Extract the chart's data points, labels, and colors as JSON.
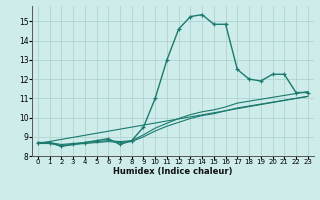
{
  "xlabel": "Humidex (Indice chaleur)",
  "xlim": [
    -0.5,
    23.5
  ],
  "ylim": [
    8.0,
    15.8
  ],
  "yticks": [
    8,
    9,
    10,
    11,
    12,
    13,
    14,
    15
  ],
  "xticks": [
    0,
    1,
    2,
    3,
    4,
    5,
    6,
    7,
    8,
    9,
    10,
    11,
    12,
    13,
    14,
    15,
    16,
    17,
    18,
    19,
    20,
    21,
    22,
    23
  ],
  "bg_color": "#ceecea",
  "grid_color": "#aed4d0",
  "line_color": "#1a7a6e",
  "series_main": {
    "x": [
      0,
      1,
      2,
      3,
      4,
      5,
      6,
      7,
      8,
      9,
      10,
      11,
      12,
      13,
      14,
      15,
      16,
      17,
      18,
      19,
      20,
      21,
      22,
      23
    ],
    "y": [
      8.7,
      8.7,
      8.5,
      8.6,
      8.7,
      8.8,
      8.9,
      8.6,
      8.8,
      9.5,
      11.0,
      13.0,
      14.6,
      15.25,
      15.35,
      14.85,
      14.85,
      12.5,
      12.0,
      11.9,
      12.25,
      12.25,
      11.3,
      11.3
    ]
  },
  "series_trend1": {
    "x": [
      0,
      1,
      2,
      3,
      4,
      5,
      6,
      7,
      8,
      9,
      10,
      11,
      12,
      13,
      14,
      15,
      16,
      17,
      18,
      19,
      20,
      21,
      22,
      23
    ],
    "y": [
      8.65,
      8.65,
      8.55,
      8.6,
      8.65,
      8.7,
      8.75,
      8.7,
      8.75,
      9.0,
      9.3,
      9.55,
      9.75,
      9.95,
      10.1,
      10.2,
      10.35,
      10.5,
      10.6,
      10.7,
      10.8,
      10.9,
      11.0,
      11.1
    ]
  },
  "series_trend2": {
    "x": [
      0,
      1,
      2,
      3,
      4,
      5,
      6,
      7,
      8,
      9,
      10,
      11,
      12,
      13,
      14,
      15,
      16,
      17,
      18,
      19,
      20,
      21,
      22,
      23
    ],
    "y": [
      8.7,
      8.7,
      8.6,
      8.65,
      8.7,
      8.75,
      8.8,
      8.75,
      8.8,
      9.1,
      9.45,
      9.7,
      9.95,
      10.15,
      10.3,
      10.4,
      10.55,
      10.75,
      10.85,
      10.95,
      11.05,
      11.15,
      11.25,
      11.35
    ]
  },
  "series_linear": {
    "x": [
      0,
      23
    ],
    "y": [
      8.65,
      11.1
    ]
  }
}
